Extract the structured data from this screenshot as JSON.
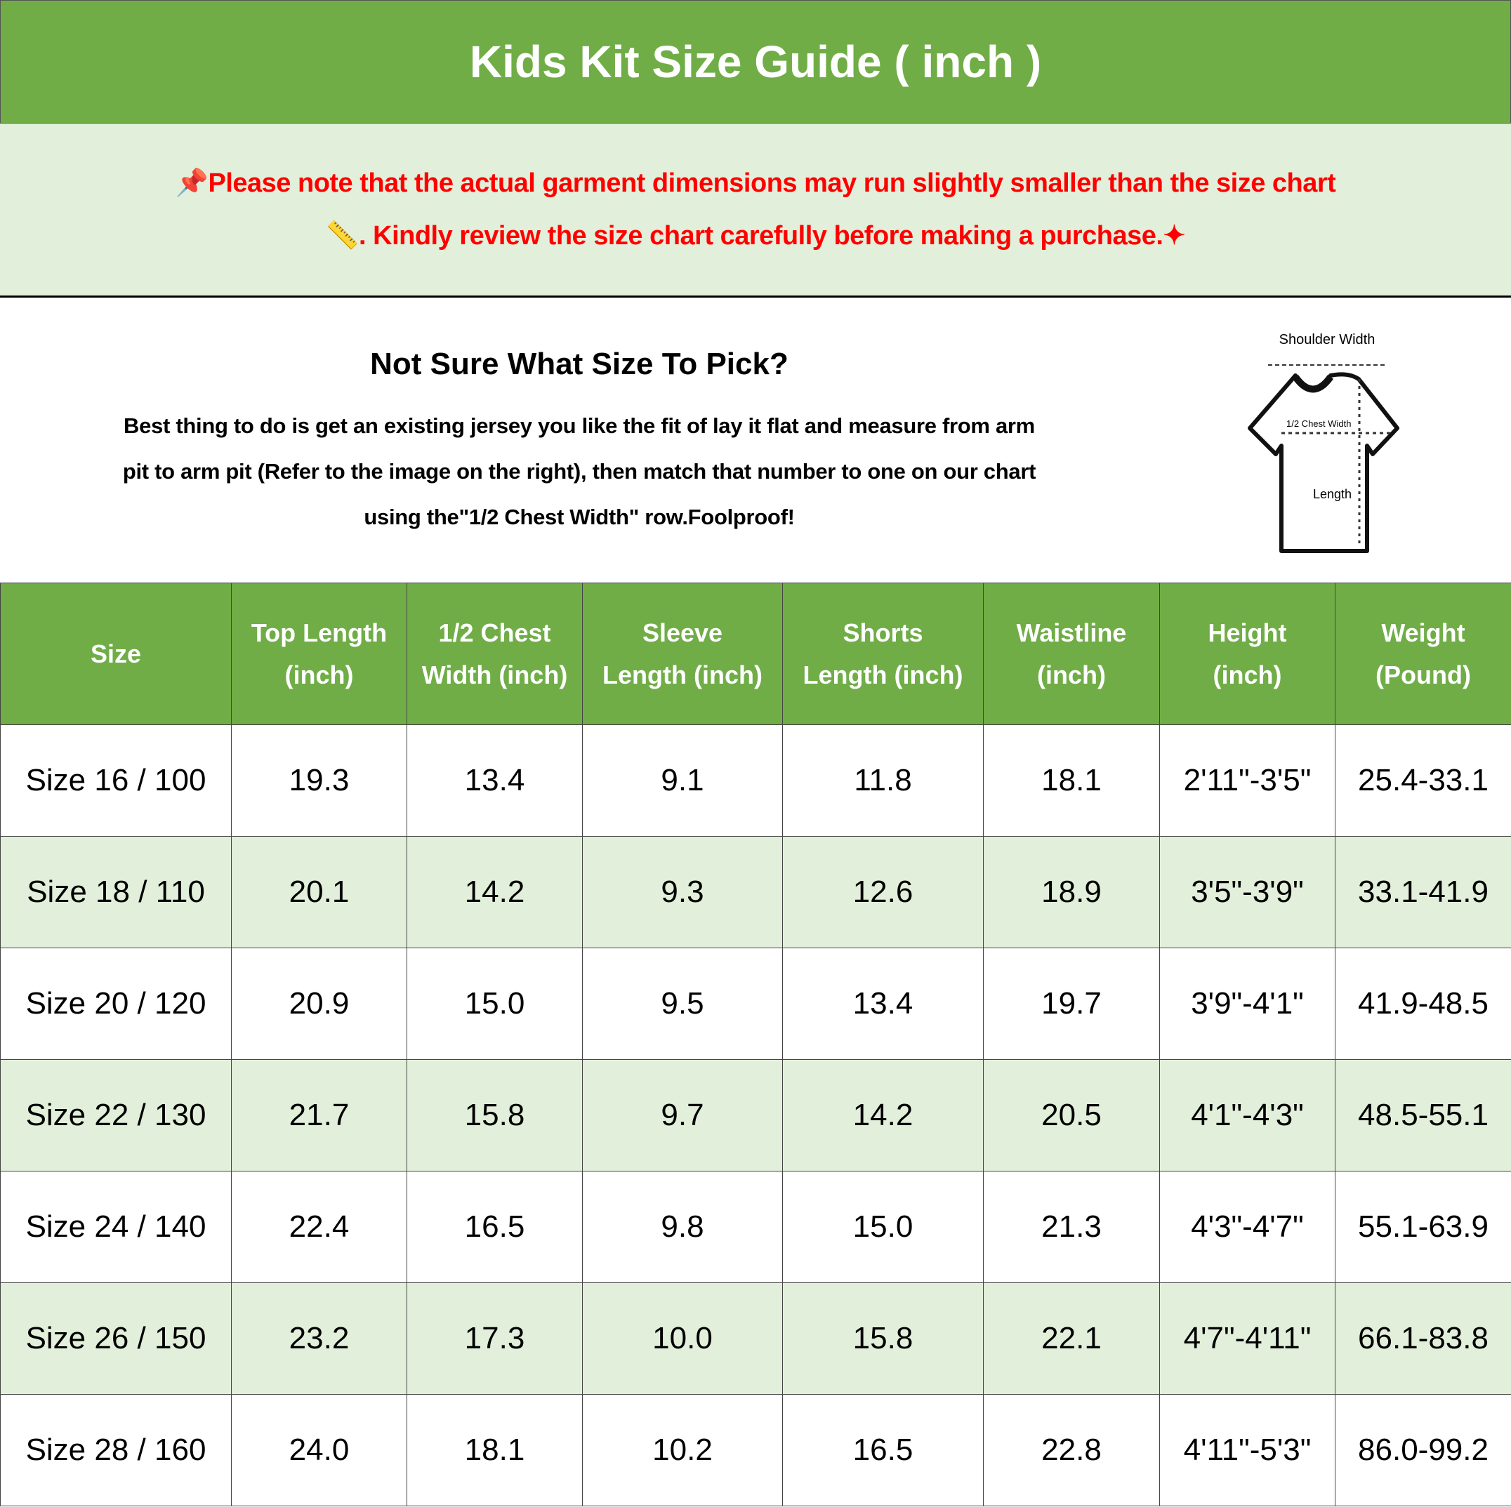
{
  "title": "Kids Kit Size Guide ( inch )",
  "notice": {
    "line1": "Please note that the actual garment dimensions may run slightly smaller than the size chart",
    "line2": ". Kindly review the size chart carefully before making a purchase.",
    "icons": [
      "pushpin-icon",
      "ruler-icon",
      "sparkles-icon"
    ],
    "color": "#FF0000"
  },
  "info": {
    "question": "Not Sure What Size To Pick?",
    "body": [
      "Best thing to do is get an existing jersey you like the fit of lay it flat and measure from arm",
      "pit to arm pit (Refer to the image on the right), then match that number to one on our chart",
      "using the\"1/2 Chest Width\" row.Foolproof!"
    ]
  },
  "diagram": {
    "shoulder": "Shoulder Width",
    "chest": "1/2 Chest Width",
    "length": "Length"
  },
  "colors": {
    "header_green": "#70AD47",
    "row_alt": "#E2EFDA"
  },
  "table": {
    "headers": [
      [
        "Size"
      ],
      [
        "Top Length",
        "(inch)"
      ],
      [
        "1/2 Chest",
        "Width (inch)"
      ],
      [
        "Sleeve",
        "Length (inch)"
      ],
      [
        "Shorts",
        "Length (inch)"
      ],
      [
        "Waistline",
        "(inch)"
      ],
      [
        "Height",
        "(inch)"
      ],
      [
        "Weight",
        "(Pound)"
      ]
    ],
    "rows": [
      [
        "Size 16 / 100",
        "19.3",
        "13.4",
        "9.1",
        "11.8",
        "18.1",
        "2'11\"-3'5\"",
        "25.4-33.1"
      ],
      [
        "Size 18 / 110",
        "20.1",
        "14.2",
        "9.3",
        "12.6",
        "18.9",
        "3'5\"-3'9\"",
        "33.1-41.9"
      ],
      [
        "Size 20 / 120",
        "20.9",
        "15.0",
        "9.5",
        "13.4",
        "19.7",
        "3'9\"-4'1\"",
        "41.9-48.5"
      ],
      [
        "Size 22 / 130",
        "21.7",
        "15.8",
        "9.7",
        "14.2",
        "20.5",
        "4'1\"-4'3\"",
        "48.5-55.1"
      ],
      [
        "Size 24 / 140",
        "22.4",
        "16.5",
        "9.8",
        "15.0",
        "21.3",
        "4'3\"-4'7\"",
        "55.1-63.9"
      ],
      [
        "Size 26 / 150",
        "23.2",
        "17.3",
        "10.0",
        "15.8",
        "22.1",
        "4'7\"-4'11\"",
        "66.1-83.8"
      ],
      [
        "Size 28 / 160",
        "24.0",
        "18.1",
        "10.2",
        "16.5",
        "22.8",
        "4'11\"-5'3\"",
        "86.0-99.2"
      ]
    ]
  }
}
